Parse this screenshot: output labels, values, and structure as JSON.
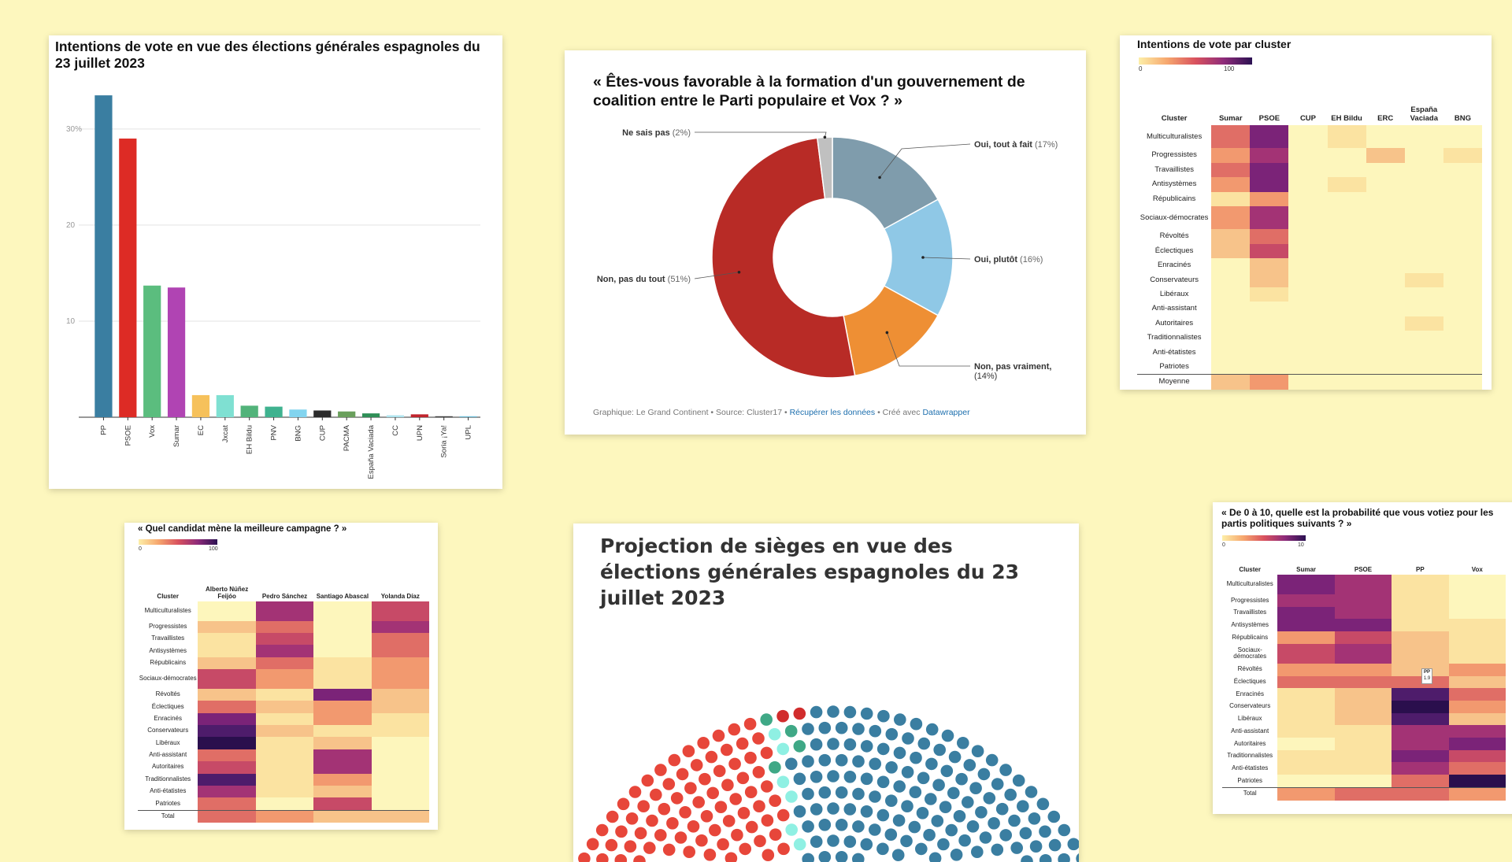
{
  "palette": [
    "#fdf6bc",
    "#fbe3a1",
    "#f7c38a",
    "#f2996f",
    "#e06e66",
    "#c74a67",
    "#a33375",
    "#7b2378",
    "#4e1c6b",
    "#2a0f4d"
  ],
  "bar_card": {
    "title": "Intentions de vote en vue des élections générales espagnoles du 23 juillet 2023"
  },
  "donut_card": {
    "title": "« Êtes-vous favorable à la formation d'un gouvernement de coalition entre le Parti populaire et Vox ? »",
    "footer_prefix": "Graphique: Le Grand Continent • Source: Cluster17 • ",
    "footer_link1": "Récupérer les données",
    "footer_mid": " • Créé avec ",
    "footer_link2": "Datawrapper"
  },
  "cluster_card": {
    "title": "Intentions de vote par cluster",
    "legend_min": "0",
    "legend_max": "100",
    "columns": [
      "Cluster",
      "Sumar",
      "PSOE",
      "CUP",
      "EH Bildu",
      "ERC",
      "España Vaciada",
      "BNG"
    ],
    "rows": [
      {
        "label": "Multiculturalistes",
        "levels": [
          4,
          7,
          0,
          1,
          0,
          0,
          0
        ]
      },
      {
        "label": "Progressistes",
        "levels": [
          3,
          6,
          0,
          0,
          2,
          0,
          1
        ]
      },
      {
        "label": "Travaillistes",
        "levels": [
          4,
          7,
          0,
          0,
          0,
          0,
          0
        ]
      },
      {
        "label": "Antisystèmes",
        "levels": [
          3,
          7,
          0,
          1,
          0,
          0,
          0
        ]
      },
      {
        "label": "Républicains",
        "levels": [
          1,
          3,
          0,
          0,
          0,
          0,
          0
        ]
      },
      {
        "label": "Sociaux-démocrates",
        "levels": [
          3,
          6,
          0,
          0,
          0,
          0,
          0
        ]
      },
      {
        "label": "Révoltés",
        "levels": [
          2,
          4,
          0,
          0,
          0,
          0,
          0
        ]
      },
      {
        "label": "Éclectiques",
        "levels": [
          2,
          5,
          0,
          0,
          0,
          0,
          0
        ]
      },
      {
        "label": "Enracinés",
        "levels": [
          0,
          2,
          0,
          0,
          0,
          0,
          0
        ]
      },
      {
        "label": "Conservateurs",
        "levels": [
          0,
          2,
          0,
          0,
          0,
          1,
          0
        ]
      },
      {
        "label": "Libéraux",
        "levels": [
          0,
          1,
          0,
          0,
          0,
          0,
          0
        ]
      },
      {
        "label": "Anti-assistant",
        "levels": [
          0,
          0,
          0,
          0,
          0,
          0,
          0
        ]
      },
      {
        "label": "Autoritaires",
        "levels": [
          0,
          0,
          0,
          0,
          0,
          1,
          0
        ]
      },
      {
        "label": "Traditionnalistes",
        "levels": [
          0,
          0,
          0,
          0,
          0,
          0,
          0
        ]
      },
      {
        "label": "Anti-étatistes",
        "levels": [
          0,
          0,
          0,
          0,
          0,
          0,
          0
        ]
      },
      {
        "label": "Patriotes",
        "levels": [
          0,
          0,
          0,
          0,
          0,
          0,
          0
        ]
      }
    ],
    "total": {
      "label": "Moyenne",
      "levels": [
        2,
        3,
        0,
        0,
        0,
        0,
        0
      ]
    }
  },
  "candidate_card": {
    "title": "« Quel candidat mène la meilleure campagne ? »",
    "legend_min": "0",
    "legend_max": "100",
    "columns": [
      "Cluster",
      "Alberto Núñez Feijóo",
      "Pedro Sánchez",
      "Santiago Abascal",
      "Yolanda Díaz"
    ],
    "rows": [
      {
        "label": "Multiculturalistes",
        "levels": [
          0,
          6,
          0,
          5
        ]
      },
      {
        "label": "Progressistes",
        "levels": [
          2,
          4,
          0,
          6
        ]
      },
      {
        "label": "Travaillistes",
        "levels": [
          1,
          5,
          0,
          4
        ]
      },
      {
        "label": "Antisystèmes",
        "levels": [
          1,
          6,
          0,
          4
        ]
      },
      {
        "label": "Républicains",
        "levels": [
          2,
          4,
          1,
          3
        ]
      },
      {
        "label": "Sociaux-démocrates",
        "levels": [
          5,
          3,
          1,
          3
        ]
      },
      {
        "label": "Révoltés",
        "levels": [
          2,
          1,
          7,
          2
        ]
      },
      {
        "label": "Éclectiques",
        "levels": [
          4,
          2,
          3,
          2
        ]
      },
      {
        "label": "Enracinés",
        "levels": [
          7,
          1,
          3,
          1
        ]
      },
      {
        "label": "Conservateurs",
        "levels": [
          8,
          2,
          1,
          1
        ]
      },
      {
        "label": "Libéraux",
        "levels": [
          9,
          1,
          2,
          0
        ]
      },
      {
        "label": "Anti-assistant",
        "levels": [
          4,
          1,
          6,
          0
        ]
      },
      {
        "label": "Autoritaires",
        "levels": [
          5,
          1,
          6,
          0
        ]
      },
      {
        "label": "Traditionnalistes",
        "levels": [
          8,
          1,
          3,
          0
        ]
      },
      {
        "label": "Anti-étatistes",
        "levels": [
          6,
          1,
          2,
          0
        ]
      },
      {
        "label": "Patriotes",
        "levels": [
          4,
          0,
          5,
          0
        ]
      }
    ],
    "total": {
      "label": "Total",
      "levels": [
        4,
        3,
        2,
        2
      ]
    }
  },
  "seat_card": {
    "title": "Projection de sièges en vue des élections générales espagnoles du 23 juillet 2023"
  },
  "prob_card": {
    "title": "« De 0 à 10, quelle est la probabilité que vous votiez pour les partis politiques suivants ? »",
    "legend_min": "0",
    "legend_max": "10",
    "columns": [
      "Cluster",
      "Sumar",
      "PSOE",
      "PP",
      "Vox"
    ],
    "tooltip_party": "PP",
    "tooltip_value": "1.9",
    "rows": [
      {
        "label": "Multiculturalistes",
        "levels": [
          7,
          6,
          1,
          0
        ]
      },
      {
        "label": "Progressistes",
        "levels": [
          6,
          6,
          1,
          0
        ]
      },
      {
        "label": "Travaillistes",
        "levels": [
          7,
          6,
          1,
          0
        ]
      },
      {
        "label": "Antisystèmes",
        "levels": [
          7,
          7,
          1,
          1
        ]
      },
      {
        "label": "Républicains",
        "levels": [
          3,
          5,
          2,
          1
        ]
      },
      {
        "label": "Sociaux-démocrates",
        "levels": [
          5,
          6,
          2,
          1
        ]
      },
      {
        "label": "Révoltés",
        "levels": [
          3,
          3,
          2,
          3
        ]
      },
      {
        "label": "Éclectiques",
        "levels": [
          4,
          4,
          4,
          2
        ]
      },
      {
        "label": "Enracinés",
        "levels": [
          1,
          2,
          8,
          4
        ]
      },
      {
        "label": "Conservateurs",
        "levels": [
          1,
          2,
          9,
          3
        ]
      },
      {
        "label": "Libéraux",
        "levels": [
          1,
          2,
          8,
          2
        ]
      },
      {
        "label": "Anti-assistant",
        "levels": [
          1,
          1,
          6,
          6
        ]
      },
      {
        "label": "Autoritaires",
        "levels": [
          0,
          1,
          6,
          7
        ]
      },
      {
        "label": "Traditionnalistes",
        "levels": [
          1,
          1,
          7,
          5
        ]
      },
      {
        "label": "Anti-étatistes",
        "levels": [
          1,
          1,
          6,
          4
        ]
      },
      {
        "label": "Patriotes",
        "levels": [
          0,
          0,
          4,
          9
        ]
      }
    ],
    "total": {
      "label": "Total",
      "levels": [
        3,
        4,
        4,
        3
      ]
    }
  },
  "chart_data": [
    {
      "type": "bar",
      "title": "Intentions de vote en vue des élections générales espagnoles du 23 juillet 2023",
      "categories": [
        "PP",
        "PSOE",
        "Vox",
        "Sumar",
        "EC",
        "Jxcat",
        "EH Bildu",
        "PNV",
        "BNG",
        "CUP",
        "PACMA",
        "España Vaciada",
        "CC",
        "UPN",
        "Soria ¡Ya!",
        "UPL"
      ],
      "values": [
        33.5,
        29,
        13.7,
        13.5,
        2.3,
        2.3,
        1.2,
        1.1,
        0.8,
        0.7,
        0.6,
        0.4,
        0.2,
        0.3,
        0.1,
        0.1
      ],
      "colors": [
        "#3a7ea1",
        "#dd2b25",
        "#5bbd7e",
        "#b044b3",
        "#f6c15b",
        "#7fe0d2",
        "#52b37a",
        "#3fb28f",
        "#82d4ef",
        "#2b2b2b",
        "#6a9f5c",
        "#2f8f57",
        "#aee3ee",
        "#c0252d",
        "#3c3c3c",
        "#6dbbd6"
      ],
      "ytick_labels": [
        "10",
        "20",
        "30%"
      ],
      "yticks": [
        10,
        20,
        30
      ],
      "ylim": [
        0,
        34
      ]
    },
    {
      "type": "pie",
      "title": "« Êtes-vous favorable à la formation d'un gouvernement de coalition entre le Parti populaire et Vox ? »",
      "labels": [
        "Oui, tout à fait",
        "Oui, plutôt",
        "Non, pas vraiment",
        "Non, pas du tout",
        "Ne sais pas"
      ],
      "values": [
        17,
        16,
        14,
        51,
        2
      ],
      "value_labels": [
        "(17%)",
        "(16%)",
        "(14%)",
        "(51%)",
        "(2%)"
      ],
      "colors": [
        "#7f9cac",
        "#8fc8e6",
        "#ee8f34",
        "#b82b26",
        "#c0c0c0"
      ]
    },
    {
      "type": "heatmap",
      "title": "Intentions de vote par cluster"
    },
    {
      "type": "heatmap",
      "title": "« Quel candidat mène la meilleure campagne ? »"
    },
    {
      "type": "heatmap",
      "title": "Projection de sièges en vue des élections générales espagnoles du 23 juillet 2023"
    },
    {
      "type": "heatmap",
      "title": "« De 0 à 10, quelle est la probabilité que vous votiez pour les partis politiques suivants ? »"
    }
  ]
}
